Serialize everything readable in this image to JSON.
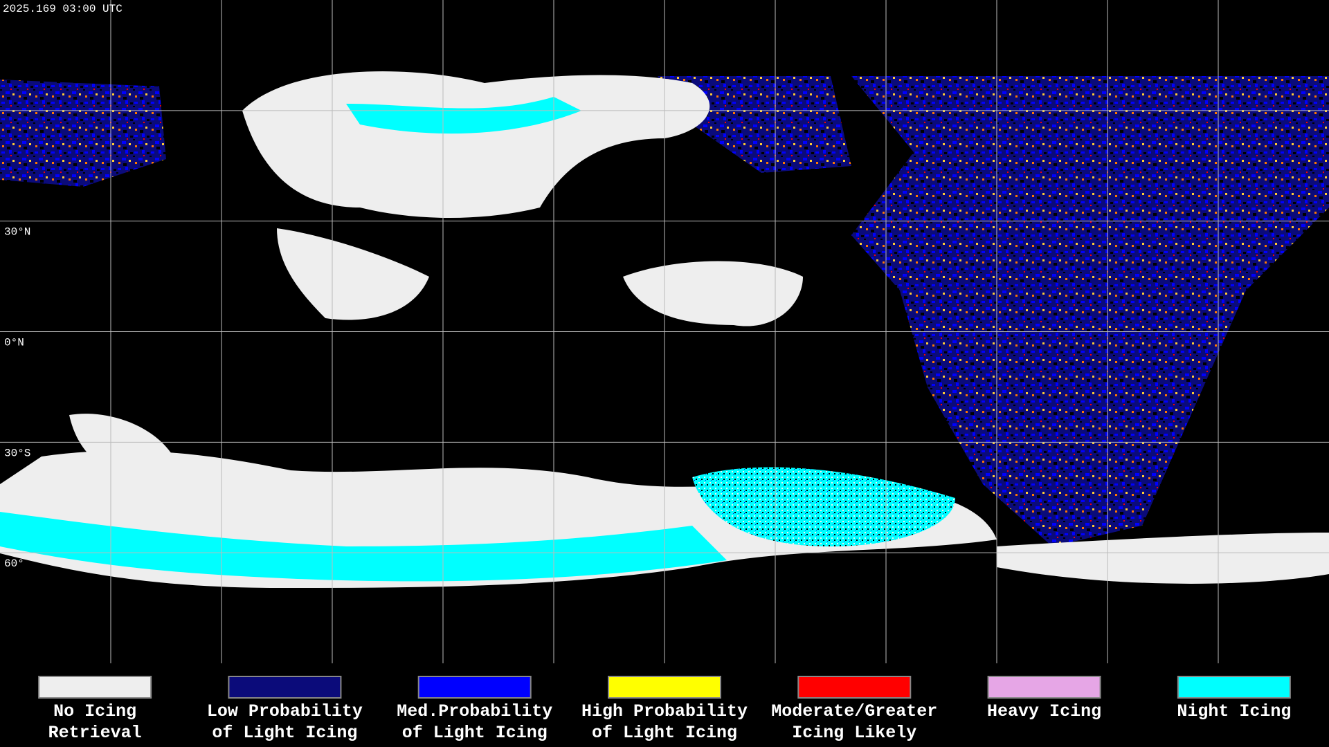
{
  "header": {
    "timestamp": "2025.169 03:00 UTC"
  },
  "map": {
    "lat_labels": [
      "30°N",
      "0°N",
      "30°S",
      "60°"
    ]
  },
  "legend": [
    {
      "color": "#eeeeee",
      "label": [
        "No Icing",
        "Retrieval"
      ]
    },
    {
      "color": "#0b0b7a",
      "label": [
        "Low Probability",
        "of Light Icing"
      ]
    },
    {
      "color": "#0000ff",
      "label": [
        "Med.Probability",
        "of Light Icing"
      ]
    },
    {
      "color": "#ffff00",
      "label": [
        "High Probability",
        "of Light Icing"
      ]
    },
    {
      "color": "#ff0000",
      "label": [
        "Moderate/Greater",
        "Icing Likely"
      ]
    },
    {
      "color": "#e6a6e6",
      "label": [
        "Heavy Icing",
        ""
      ]
    },
    {
      "color": "#00ffff",
      "label": [
        "Night Icing",
        ""
      ]
    }
  ]
}
